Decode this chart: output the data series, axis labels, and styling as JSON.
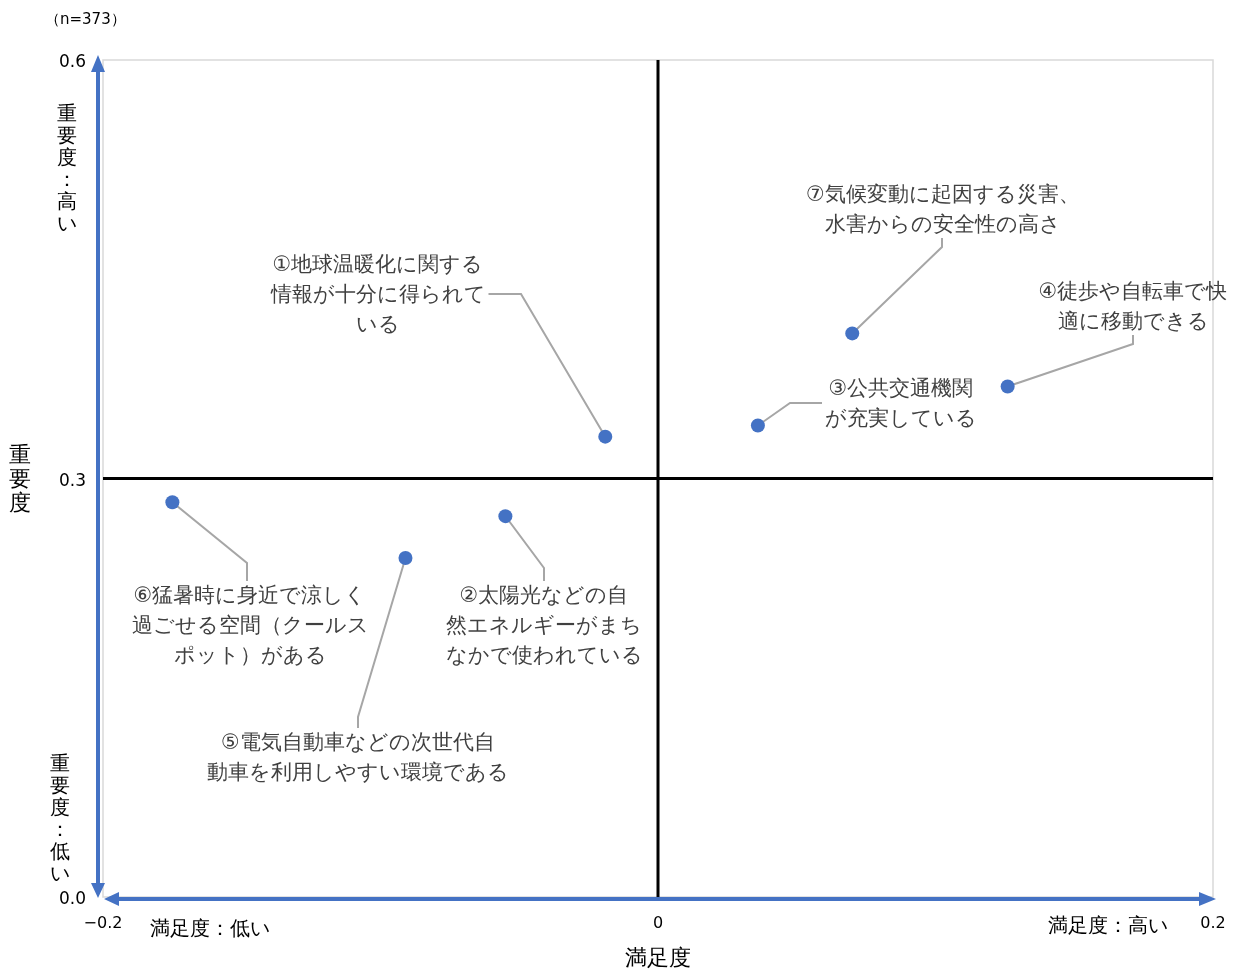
{
  "chart_data": {
    "type": "scatter",
    "xlabel": "満足度",
    "ylabel": "重要度",
    "color": "#4472c4",
    "marker": "circle",
    "x": [
      -0.019,
      -0.055,
      0.036,
      0.126,
      -0.091,
      -0.175,
      0.07
    ],
    "values": [
      0.33,
      0.273,
      0.338,
      0.366,
      0.243,
      0.283,
      0.404
    ],
    "xlim": [
      -0.2,
      0.2
    ],
    "ylim": [
      0,
      0.6
    ],
    "xticks": [
      {
        "value": -0.2,
        "label": "−0.2"
      },
      0,
      0.2
    ],
    "yticks": [
      {
        "value": 0,
        "label": "0.0"
      },
      0.3,
      0.6
    ],
    "ref_lines": [
      {
        "axis": "x",
        "value": 0,
        "color": "#000000"
      },
      {
        "axis": "y",
        "value": 0.3,
        "color": "#000000"
      }
    ],
    "annotations": [
      "（n=373）",
      "重要度：高い",
      "重要度：低い",
      "満足度：低い",
      "満足度：高い",
      {
        "text": "①地球温暖化に関する情報が十分に得られている",
        "x": -0.019,
        "y": 0.33
      },
      {
        "text": "②太陽光などの自然エネルギーがまちなかで使われている",
        "x": -0.055,
        "y": 0.273
      },
      {
        "text": "③公共交通機関が充実している",
        "x": 0.036,
        "y": 0.338
      },
      {
        "text": "④徒歩や自転車で快適に移動できる",
        "x": 0.126,
        "y": 0.366
      },
      {
        "text": "⑤電気自動車などの次世代自動車を利用しやすい環境である",
        "x": -0.091,
        "y": 0.243
      },
      {
        "text": "⑥猛暑時に身近で涼しく過ごせる空間（クールスポット）がある",
        "x": -0.175,
        "y": 0.283
      },
      {
        "text": "⑦気候変動に起因する災害、水害からの安全性の高さ",
        "x": 0.07,
        "y": 0.404
      }
    ]
  }
}
